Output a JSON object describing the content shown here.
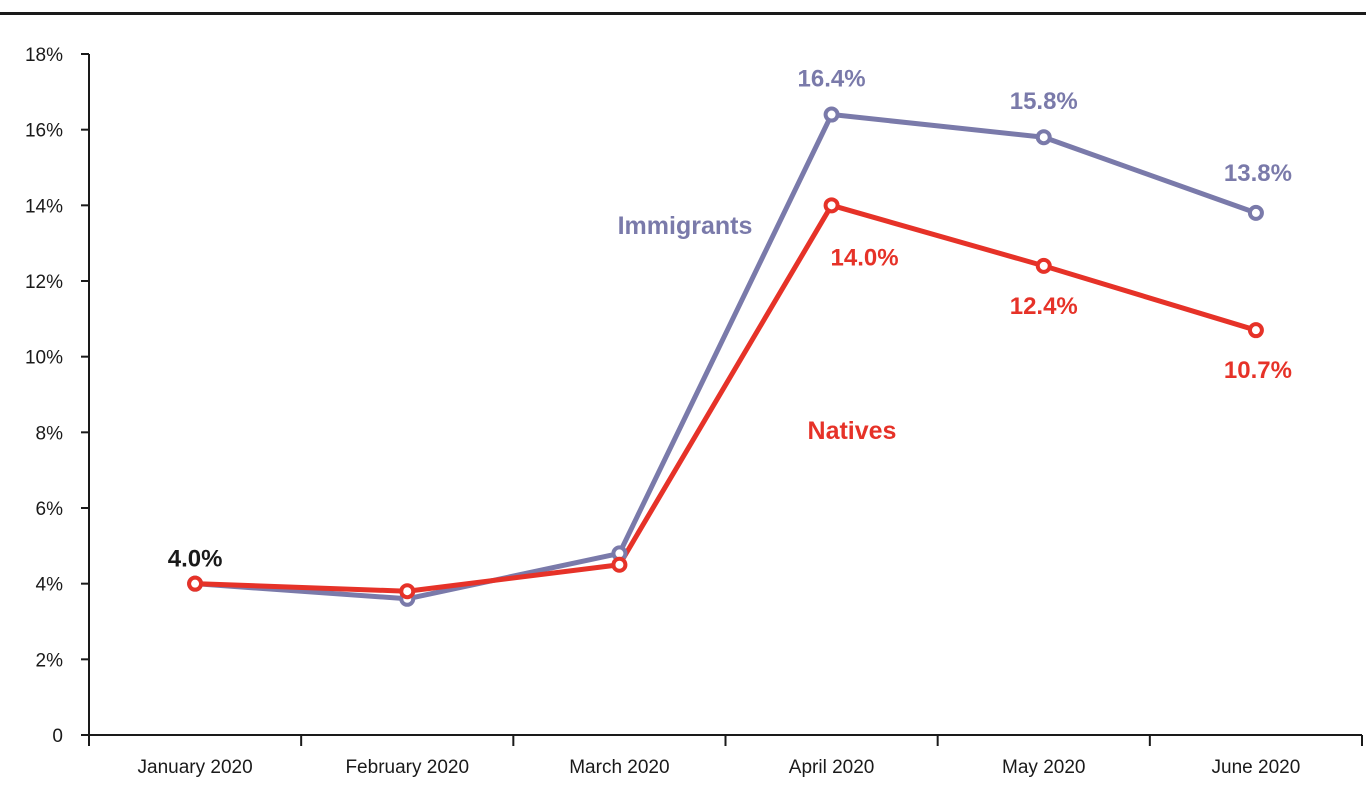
{
  "chart_data": {
    "type": "line",
    "title": "",
    "xlabel": "",
    "ylabel": "",
    "categories": [
      "January 2020",
      "February 2020",
      "March 2020",
      "April 2020",
      "May 2020",
      "June 2020"
    ],
    "ylim": [
      0,
      18
    ],
    "yticks": [
      {
        "value": 0,
        "label": "0"
      },
      {
        "value": 2,
        "label": "2%"
      },
      {
        "value": 4,
        "label": "4%"
      },
      {
        "value": 6,
        "label": "6%"
      },
      {
        "value": 8,
        "label": "8%"
      },
      {
        "value": 10,
        "label": "10%"
      },
      {
        "value": 12,
        "label": "12%"
      },
      {
        "value": 14,
        "label": "14%"
      },
      {
        "value": 16,
        "label": "16%"
      },
      {
        "value": 18,
        "label": "18%"
      }
    ],
    "grid": false,
    "legend": "inline labels",
    "series": [
      {
        "name": "Immigrants",
        "color": "#7a7aaa",
        "values": [
          4.0,
          3.6,
          4.8,
          16.4,
          15.8,
          13.8
        ],
        "data_labels": [
          "",
          "",
          "",
          "16.4%",
          "15.8%",
          "13.8%"
        ]
      },
      {
        "name": "Natives",
        "color": "#e63228",
        "values": [
          4.0,
          3.8,
          4.5,
          14.0,
          12.4,
          10.7
        ],
        "data_labels": [
          "4.0%",
          "",
          "",
          "14.0%",
          "12.4%",
          "10.7%"
        ]
      }
    ]
  }
}
